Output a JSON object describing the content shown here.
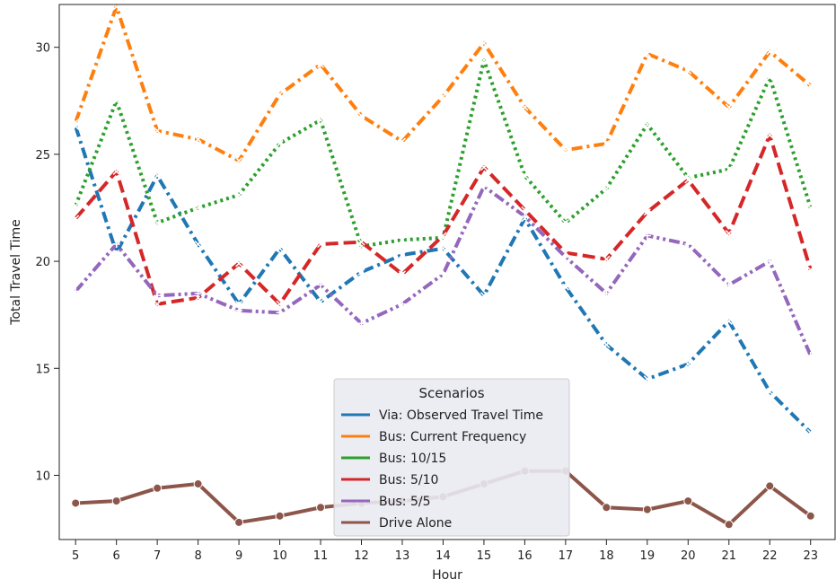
{
  "chart_data": {
    "type": "line",
    "title": "",
    "xlabel": "Hour",
    "ylabel": "Total Travel Time",
    "x": [
      5,
      6,
      7,
      8,
      9,
      10,
      11,
      12,
      13,
      14,
      15,
      16,
      17,
      18,
      19,
      20,
      21,
      22,
      23
    ],
    "xticks": [
      "5",
      "6",
      "7",
      "8",
      "9",
      "10",
      "11",
      "12",
      "13",
      "14",
      "15",
      "16",
      "17",
      "18",
      "19",
      "20",
      "21",
      "22",
      "23"
    ],
    "yticks": [
      "10",
      "15",
      "20",
      "25",
      "30"
    ],
    "ylim": [
      7.0,
      32.0
    ],
    "xlim": [
      4.6,
      23.6
    ],
    "grid": false,
    "legend": {
      "title": "Scenarios",
      "position": "bottom-center"
    },
    "series": [
      {
        "name": "Via: Observed Travel Time",
        "color": "#1f77b4",
        "dash": "dashdot",
        "marker": "x",
        "values": [
          26.3,
          20.4,
          24.0,
          20.8,
          18.0,
          20.6,
          18.1,
          19.5,
          20.3,
          20.6,
          18.4,
          22.0,
          18.8,
          16.1,
          14.5,
          15.2,
          17.2,
          13.9,
          12.0
        ]
      },
      {
        "name": "Bus: Current Frequency",
        "color": "#ff7f0e",
        "dash": "dashdot",
        "marker": "x",
        "values": [
          26.5,
          31.9,
          26.1,
          25.7,
          24.7,
          27.8,
          29.2,
          26.8,
          25.6,
          27.7,
          30.2,
          27.2,
          25.2,
          25.5,
          29.7,
          28.9,
          27.2,
          29.8,
          28.2
        ]
      },
      {
        "name": "Bus: 10/15",
        "color": "#2ca02c",
        "dash": "dotted",
        "marker": "x",
        "values": [
          22.6,
          27.5,
          21.8,
          22.5,
          23.1,
          25.5,
          26.6,
          20.7,
          21.0,
          21.1,
          29.4,
          24.0,
          21.8,
          23.4,
          26.4,
          23.9,
          24.3,
          28.6,
          22.5
        ]
      },
      {
        "name": "Bus: 5/10",
        "color": "#d62728",
        "dash": "dashed",
        "marker": "x",
        "values": [
          22.0,
          24.2,
          18.0,
          18.3,
          19.9,
          18.0,
          20.8,
          20.9,
          19.4,
          21.2,
          24.4,
          22.4,
          20.4,
          20.1,
          22.3,
          23.8,
          21.3,
          25.9,
          19.6
        ]
      },
      {
        "name": "Bus: 5/5",
        "color": "#9467bd",
        "dash": "dashdotdot",
        "marker": "plus",
        "values": [
          18.6,
          20.8,
          18.4,
          18.5,
          17.7,
          17.6,
          18.9,
          17.1,
          18.0,
          19.4,
          23.5,
          22.1,
          20.2,
          18.5,
          21.2,
          20.8,
          18.9,
          20.0,
          15.6
        ]
      },
      {
        "name": "Drive Alone",
        "color": "#8c564b",
        "dash": "solid",
        "marker": "circle",
        "values": [
          8.7,
          8.8,
          9.4,
          9.6,
          7.8,
          8.1,
          8.5,
          8.7,
          8.8,
          9.0,
          9.6,
          10.2,
          10.2,
          8.5,
          8.4,
          8.8,
          7.7,
          9.5,
          8.1
        ]
      }
    ]
  }
}
